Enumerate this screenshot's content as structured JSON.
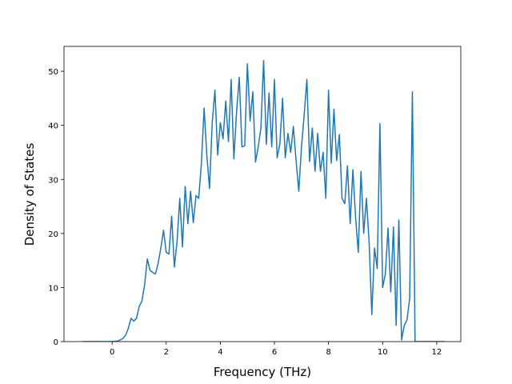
{
  "chart_data": {
    "type": "line",
    "xlabel": "Frequency (THz)",
    "ylabel": "Density of States",
    "x": [
      -1.1,
      -1.0,
      -0.9,
      -0.8,
      -0.7,
      -0.6,
      -0.5,
      -0.4,
      -0.3,
      -0.2,
      -0.1,
      0.0,
      0.1,
      0.2,
      0.3,
      0.4,
      0.5,
      0.6,
      0.7,
      0.8,
      0.9,
      1.0,
      1.1,
      1.2,
      1.3,
      1.4,
      1.5,
      1.6,
      1.7,
      1.8,
      1.9,
      2.0,
      2.1,
      2.2,
      2.3,
      2.4,
      2.5,
      2.6,
      2.7,
      2.8,
      2.9,
      3.0,
      3.1,
      3.2,
      3.3,
      3.4,
      3.5,
      3.6,
      3.7,
      3.8,
      3.9,
      4.0,
      4.1,
      4.2,
      4.3,
      4.4,
      4.5,
      4.6,
      4.7,
      4.8,
      4.9,
      5.0,
      5.1,
      5.2,
      5.3,
      5.4,
      5.5,
      5.6,
      5.7,
      5.8,
      5.9,
      6.0,
      6.1,
      6.2,
      6.3,
      6.4,
      6.5,
      6.6,
      6.7,
      6.8,
      6.9,
      7.0,
      7.1,
      7.2,
      7.3,
      7.4,
      7.5,
      7.6,
      7.7,
      7.8,
      7.9,
      8.0,
      8.1,
      8.2,
      8.3,
      8.4,
      8.5,
      8.6,
      8.7,
      8.8,
      8.9,
      9.0,
      9.1,
      9.2,
      9.3,
      9.4,
      9.5,
      9.6,
      9.7,
      9.8,
      9.9,
      10.0,
      10.1,
      10.2,
      10.3,
      10.4,
      10.5,
      10.6,
      10.7,
      10.8,
      10.9,
      11.0,
      11.1,
      11.2,
      11.3,
      11.4,
      11.5,
      11.6,
      11.7,
      11.8,
      11.9,
      12.0,
      12.1,
      12.2,
      12.3
    ],
    "series": [
      {
        "color": "#1f77b4",
        "values": [
          0,
          0,
          0,
          0,
          0,
          0,
          0,
          0,
          0,
          0,
          0,
          0,
          0.05,
          0.1,
          0.3,
          0.6,
          1.2,
          2.5,
          4.3,
          3.8,
          4.3,
          6.5,
          7.5,
          10.5,
          15.3,
          13.2,
          12.8,
          12.5,
          14.5,
          17.3,
          20.6,
          16.5,
          16.2,
          23.2,
          13.8,
          18.5,
          26.5,
          17.5,
          28.7,
          21.8,
          27.8,
          22.0,
          27.0,
          26.5,
          33.0,
          43.2,
          34.5,
          28.3,
          40.5,
          46.5,
          34.5,
          40.5,
          37.5,
          44.5,
          37.0,
          48.5,
          33.8,
          42.5,
          48.9,
          36.0,
          36.2,
          51.4,
          40.8,
          46.2,
          33.2,
          36.0,
          39.5,
          52.0,
          36.5,
          46.0,
          36.0,
          48.5,
          34.0,
          36.5,
          45.0,
          34.0,
          38.5,
          35.0,
          39.8,
          33.5,
          27.8,
          36.0,
          42.0,
          48.5,
          33.3,
          39.5,
          31.5,
          38.5,
          31.5,
          35.0,
          26.5,
          46.5,
          33.0,
          43.0,
          33.5,
          38.3,
          26.5,
          25.5,
          32.5,
          21.8,
          31.8,
          23.0,
          16.5,
          31.5,
          20.0,
          26.5,
          18.5,
          5.0,
          17.3,
          13.5,
          40.3,
          10.0,
          12.5,
          21.0,
          9.2,
          21.2,
          3.0,
          22.5,
          0.3,
          3.0,
          4.0,
          8.0,
          46.2,
          0,
          0,
          0,
          0,
          0,
          0,
          0,
          0,
          0,
          0,
          0,
          0
        ]
      }
    ],
    "xlim": [
      -1.78,
      12.89
    ],
    "ylim": [
      0,
      54.6
    ],
    "xticks": [
      0,
      2,
      4,
      6,
      8,
      10,
      12
    ],
    "yticks": [
      0,
      10,
      20,
      30,
      40,
      50
    ]
  }
}
